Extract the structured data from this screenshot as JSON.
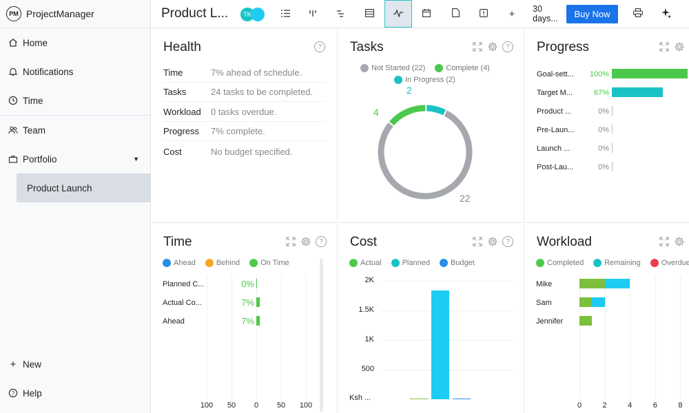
{
  "app": {
    "logo_badge": "PM",
    "logo_text": "ProjectManager"
  },
  "sidebar": {
    "items": [
      {
        "label": "Home",
        "icon": "home-icon"
      },
      {
        "label": "Notifications",
        "icon": "bell-icon"
      },
      {
        "label": "Time",
        "icon": "clock-icon"
      },
      {
        "label": "Team",
        "icon": "team-icon"
      },
      {
        "label": "Portfolio",
        "icon": "briefcase-icon"
      }
    ],
    "sub_item": "Product Launch",
    "new_label": "New",
    "help_label": "Help"
  },
  "topbar": {
    "title": "Product L...",
    "avatar_initials": "TK",
    "days_line1": "30",
    "days_line2": "days...",
    "buy_label": "Buy Now",
    "plus": "+"
  },
  "health": {
    "title": "Health",
    "rows": [
      {
        "label": "Time",
        "value": "7% ahead of schedule."
      },
      {
        "label": "Tasks",
        "value": "24 tasks to be completed."
      },
      {
        "label": "Workload",
        "value": "0 tasks overdue."
      },
      {
        "label": "Progress",
        "value": "7% complete."
      },
      {
        "label": "Cost",
        "value": "No budget specified."
      }
    ]
  },
  "tasks": {
    "title": "Tasks",
    "legend": [
      "Not Started (22)",
      "Complete (4)",
      "In Progress (2)"
    ],
    "labels": [
      "2",
      "4",
      "22"
    ]
  },
  "progress": {
    "title": "Progress",
    "rows": [
      {
        "label": "Goal-sett...",
        "pct": "100%"
      },
      {
        "label": "Target M...",
        "pct": "67%"
      },
      {
        "label": "Product ...",
        "pct": "0%"
      },
      {
        "label": "Pre-Laun...",
        "pct": "0%"
      },
      {
        "label": "Launch ...",
        "pct": "0%"
      },
      {
        "label": "Post-Lau...",
        "pct": "0%"
      }
    ]
  },
  "time": {
    "title": "Time",
    "legend": [
      "Ahead",
      "Behind",
      "On Time"
    ],
    "rows": [
      {
        "label": "Planned C...",
        "pct": "0%"
      },
      {
        "label": "Actual Co...",
        "pct": "7%"
      },
      {
        "label": "Ahead",
        "pct": "7%"
      }
    ],
    "ticks": [
      "100",
      "50",
      "0",
      "50",
      "100"
    ]
  },
  "cost": {
    "title": "Cost",
    "legend": [
      "Actual",
      "Planned",
      "Budget"
    ],
    "yticks": [
      "2K",
      "1.5K",
      "1K",
      "500",
      "Ksh ..."
    ]
  },
  "workload": {
    "title": "Workload",
    "legend": [
      "Completed",
      "Remaining",
      "Overdue"
    ],
    "people": [
      "Mike",
      "Sam",
      "Jennifer"
    ],
    "ticks": [
      "0",
      "2",
      "4",
      "6",
      "8"
    ]
  },
  "colors": {
    "green": "#4cc94c",
    "teal": "#19c3c3",
    "blue": "#1ecbf2",
    "grey": "#a5a8ad",
    "orange": "#f5a623",
    "red": "#ef3b4e",
    "darkblue": "#2a8ee8",
    "olive": "#7cbf3c"
  },
  "chart_data": [
    {
      "type": "pie",
      "categories": [
        "Not Started",
        "Complete",
        "In Progress"
      ],
      "values": [
        22,
        4,
        2
      ]
    },
    {
      "type": "bar",
      "orientation": "horizontal",
      "categories": [
        "Goal-sett...",
        "Target M...",
        "Product ...",
        "Pre-Laun...",
        "Launch ...",
        "Post-Lau..."
      ],
      "values": [
        100,
        67,
        0,
        0,
        0,
        0
      ]
    },
    {
      "type": "bar",
      "orientation": "horizontal",
      "categories": [
        "Planned C...",
        "Actual Co...",
        "Ahead"
      ],
      "values": [
        0,
        7,
        7
      ],
      "xlim": [
        -100,
        100
      ]
    },
    {
      "type": "bar",
      "categories": [
        "Ksh ..."
      ],
      "series": [
        {
          "name": "Actual",
          "values": [
            0
          ]
        },
        {
          "name": "Planned",
          "values": [
            1840
          ]
        },
        {
          "name": "Budget",
          "values": [
            0
          ]
        }
      ],
      "ylim": [
        0,
        2000
      ]
    },
    {
      "type": "bar",
      "orientation": "horizontal",
      "stacked": true,
      "categories": [
        "Mike",
        "Sam",
        "Jennifer"
      ],
      "series": [
        {
          "name": "Completed",
          "values": [
            2,
            1,
            1
          ]
        },
        {
          "name": "Remaining",
          "values": [
            2,
            1,
            0
          ]
        },
        {
          "name": "Overdue",
          "values": [
            0,
            0,
            0
          ]
        }
      ],
      "xlim": [
        0,
        8
      ]
    }
  ]
}
